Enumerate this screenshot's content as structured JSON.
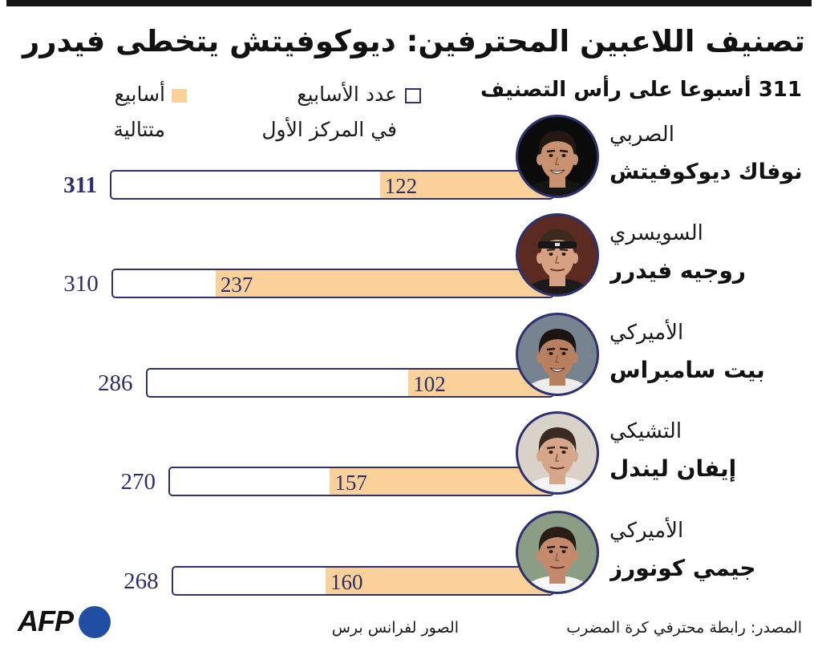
{
  "chart_data": {
    "type": "bar",
    "orientation": "horizontal",
    "layout": "overlaid",
    "bar_direction": "right-to-left",
    "title": "تصنيف اللاعبين المحترفين: ديوكوفيتش يتخطى فيدرر",
    "subtitle": "311 أسبوعا على رأس التصنيف",
    "categories": [
      "نوفاك ديوكوفيتش",
      "روجيه فيدرر",
      "بيت سامبراس",
      "إيفان ليندل",
      "جيمي كونورز"
    ],
    "category_nationalities": [
      "الصربي",
      "السويسري",
      "الأميركي",
      "التشيكي",
      "الأميركي"
    ],
    "series": [
      {
        "legend_lines": [
          "عدد الأسابيع",
          "في المركز الأول"
        ],
        "values": [
          311,
          310,
          286,
          270,
          268
        ],
        "color": "#ffffff",
        "outline": "#2e3170"
      },
      {
        "legend_lines": [
          "أسابيع",
          "متتالية"
        ],
        "values": [
          122,
          237,
          102,
          157,
          160
        ],
        "color": "#fbd19a"
      }
    ],
    "legend_position": "top",
    "grid": false
  },
  "footer": {
    "source": "المصدر: رابطة محترفي كرة المضرب",
    "photo_credit": "الصور لفرانس برس",
    "logo_text": "AFP"
  },
  "colors": {
    "title_text": "#111111",
    "number_text": "#2c2e6c",
    "bar_outline": "#2e3170",
    "afp_blue": "#1f4ea3",
    "top_rule": "#141414"
  }
}
